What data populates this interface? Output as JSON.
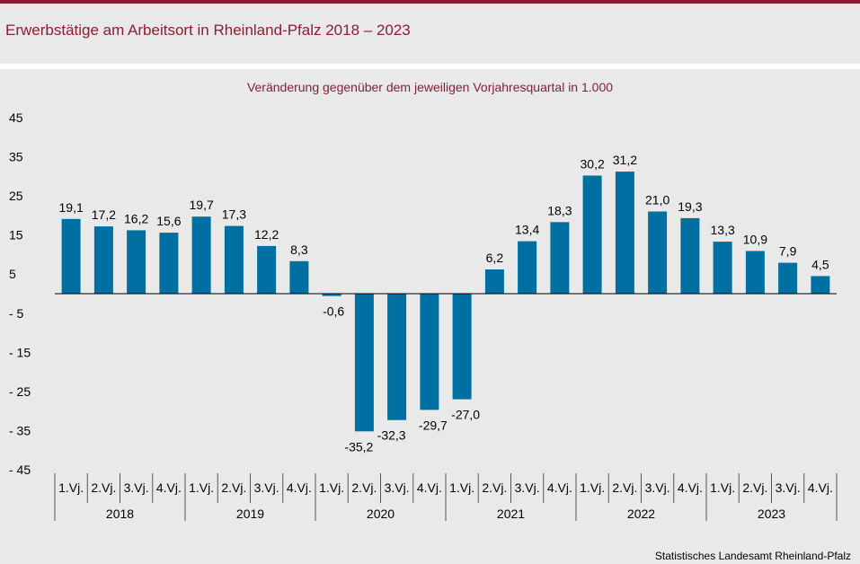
{
  "header": {
    "title": "Erwerbstätige am Arbeitsort in Rheinland-Pfalz 2018 – 2023"
  },
  "footer": {
    "source": "Statistisches Landesamt Rheinland-Pfalz"
  },
  "colors": {
    "accent": "#8b1e34",
    "bar": "#0070a3",
    "background": "#e9e9e9"
  },
  "chart_data": {
    "type": "bar",
    "title": "Veränderung gegenüber dem jeweiligen Vorjahresquartal in 1.000",
    "xlabel": "",
    "ylabel": "",
    "ylim": [
      -45,
      45
    ],
    "yticks": [
      45,
      35,
      25,
      15,
      5,
      -5,
      -15,
      -25,
      -35,
      -45
    ],
    "ytick_labels": [
      "45",
      "35",
      "25",
      "15",
      "5",
      "- 5",
      "- 15",
      "- 25",
      "- 35",
      "- 45"
    ],
    "grid": false,
    "legend": "none",
    "groups": [
      "2018",
      "2019",
      "2020",
      "2021",
      "2022",
      "2023"
    ],
    "quarters": [
      "1.Vj.",
      "2.Vj.",
      "3.Vj.",
      "4.Vj."
    ],
    "values": [
      19.1,
      17.2,
      16.2,
      15.6,
      19.7,
      17.3,
      12.2,
      8.3,
      -0.6,
      -35.2,
      -32.3,
      -29.7,
      -27.0,
      6.2,
      13.4,
      18.3,
      30.2,
      31.2,
      21.0,
      19.3,
      13.3,
      10.9,
      7.9,
      4.5
    ],
    "value_labels": [
      "19,1",
      "17,2",
      "16,2",
      "15,6",
      "19,7",
      "17,3",
      "12,2",
      "8,3",
      "-0,6",
      "-35,2",
      "-32,3",
      "-29,7",
      "-27,0",
      "6,2",
      "13,4",
      "18,3",
      "30,2",
      "31,2",
      "21,0",
      "19,3",
      "13,3",
      "10,9",
      "7,9",
      "4,5"
    ]
  }
}
